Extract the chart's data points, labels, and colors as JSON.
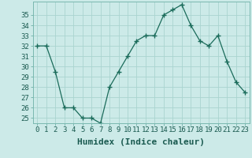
{
  "x": [
    0,
    1,
    2,
    3,
    4,
    5,
    6,
    7,
    8,
    9,
    10,
    11,
    12,
    13,
    14,
    15,
    16,
    17,
    18,
    19,
    20,
    21,
    22,
    23
  ],
  "y": [
    32,
    32,
    29.5,
    26,
    26,
    25,
    25,
    24.5,
    28,
    29.5,
    31,
    32.5,
    33,
    33,
    35,
    35.5,
    36,
    34,
    32.5,
    32,
    33,
    30.5,
    28.5,
    27.5
  ],
  "xlabel": "Humidex (Indice chaleur)",
  "xlim": [
    -0.5,
    23.5
  ],
  "ylim": [
    24.5,
    36.3
  ],
  "yticks": [
    25,
    26,
    27,
    28,
    29,
    30,
    31,
    32,
    33,
    34,
    35
  ],
  "xticks": [
    0,
    1,
    2,
    3,
    4,
    5,
    6,
    7,
    8,
    9,
    10,
    11,
    12,
    13,
    14,
    15,
    16,
    17,
    18,
    19,
    20,
    21,
    22,
    23
  ],
  "line_color": "#1a6b5a",
  "marker": "+",
  "marker_size": 4,
  "bg_color": "#cceae8",
  "grid_color": "#aad4d0",
  "tick_label_fontsize": 6.5,
  "xlabel_fontsize": 8,
  "xlabel_fontweight": "bold"
}
